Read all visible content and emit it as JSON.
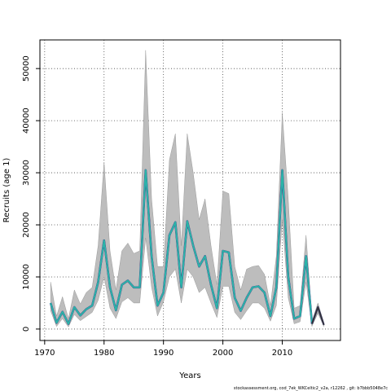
{
  "chart_data": {
    "type": "line",
    "title": "",
    "xlabel": "Years",
    "ylabel": "Recruits (age 1)",
    "xlim": [
      1969.2,
      2019.8
    ],
    "ylim": [
      -2200,
      55500
    ],
    "x_ticks": [
      1970,
      1980,
      1990,
      2000,
      2010
    ],
    "y_ticks": [
      0,
      10000,
      20000,
      30000,
      40000,
      50000
    ],
    "grid": true,
    "legend": "none",
    "colors": {
      "band": "#bdbdbd",
      "band_edge": "#8c8c8c",
      "main_line": "#2ab5a6",
      "dark_line": "#2d2d6e",
      "blue_line": "#4f9de0",
      "projection": "#333333"
    },
    "series": [
      {
        "x": [
          1971,
          1972,
          1973,
          1974,
          1975,
          1976,
          1977,
          1978,
          1979,
          1980,
          1981,
          1982,
          1983,
          1984,
          1985,
          1986,
          1987,
          1988,
          1989,
          1990,
          1991,
          1992,
          1993,
          1994,
          1995,
          1996,
          1997,
          1998,
          1999,
          2000,
          2001,
          2002,
          2003,
          2004,
          2005,
          2006,
          2007,
          2008,
          2009,
          2010,
          2011,
          2012,
          2013,
          2014,
          2015
        ],
        "values": [
          5000,
          1200,
          3300,
          1000,
          4200,
          2600,
          3800,
          4500,
          9000,
          17000,
          8000,
          3600,
          8500,
          9300,
          8000,
          8000,
          30500,
          14000,
          4500,
          7000,
          18000,
          20500,
          8000,
          20700,
          16000,
          12000,
          14000,
          8500,
          4000,
          15000,
          14700,
          6000,
          3500,
          6000,
          8000,
          8200,
          7000,
          2500,
          8000,
          30500,
          10000,
          2000,
          2500,
          14000,
          1000
        ],
        "upper": [
          9000,
          2500,
          6200,
          2000,
          7500,
          4800,
          7000,
          8000,
          16000,
          32000,
          15000,
          7500,
          15000,
          16500,
          14500,
          15000,
          53500,
          25000,
          12000,
          12000,
          32500,
          37500,
          16000,
          37500,
          30000,
          21000,
          25000,
          16000,
          8500,
          26500,
          26000,
          12000,
          7500,
          11500,
          12000,
          12200,
          10500,
          4500,
          14000,
          41500,
          25000,
          4000,
          4500,
          18000,
          2000
        ],
        "lower": [
          3500,
          500,
          2000,
          400,
          2800,
          1600,
          2400,
          3200,
          5500,
          10000,
          4000,
          2000,
          5200,
          6000,
          5000,
          5000,
          17500,
          8000,
          2500,
          5200,
          10000,
          11500,
          5000,
          11500,
          10000,
          7000,
          8000,
          5000,
          2200,
          8200,
          8200,
          3200,
          1800,
          3500,
          5000,
          5000,
          4000,
          1500,
          4500,
          21000,
          6000,
          1000,
          1400,
          9000,
          500
        ]
      },
      {
        "name": "",
        "x": [
          2015,
          2016,
          2017
        ],
        "values": [
          1000,
          4200,
          800
        ],
        "upper": [
          1500,
          5000,
          1200
        ],
        "lower": [
          600,
          3000,
          500
        ]
      }
    ]
  },
  "footer_text": "stockassessment.org, cod_7ek_WKCeltic2_v2a, r12262 , git: b7bbb5048e7c"
}
